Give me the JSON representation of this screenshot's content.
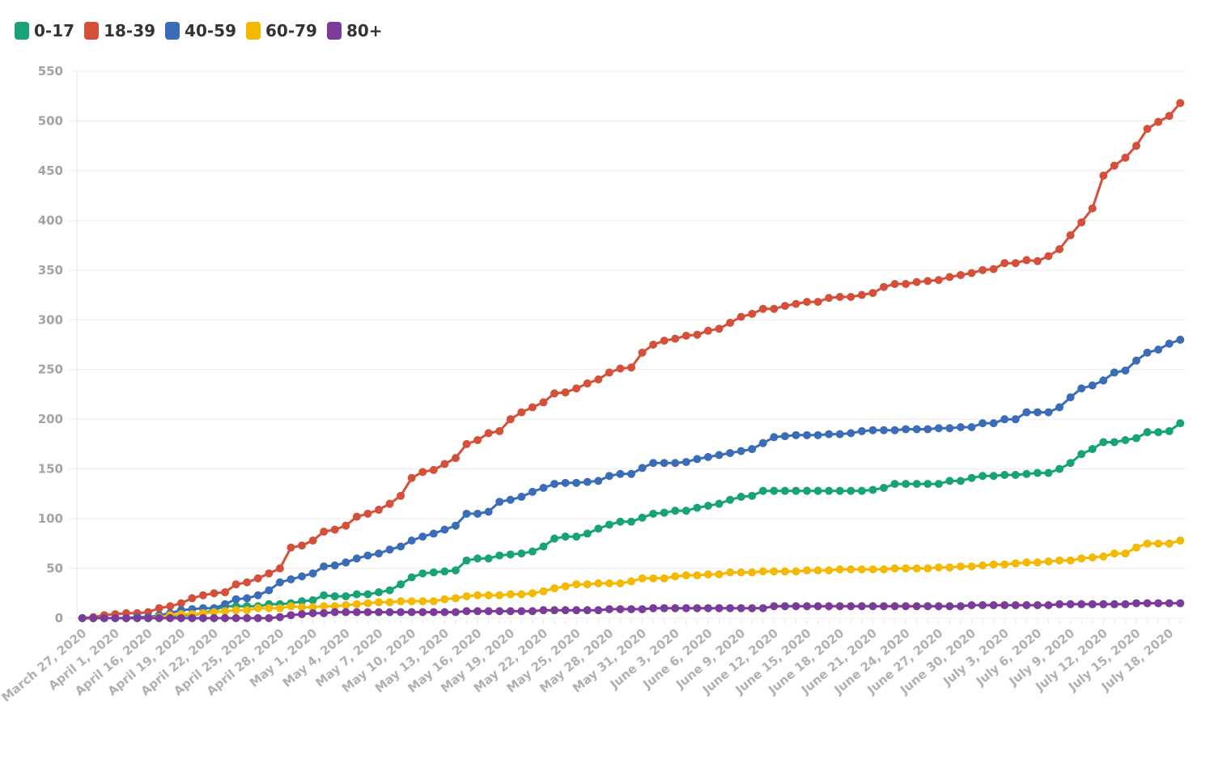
{
  "chart_data": {
    "type": "line",
    "title": "",
    "xlabel": "",
    "ylabel": "",
    "ylim": [
      0,
      550
    ],
    "yticks": [
      0,
      50,
      100,
      150,
      200,
      250,
      300,
      350,
      400,
      450,
      500,
      550
    ],
    "grid": "horizontal",
    "legend_position": "top-left",
    "x": [
      "March 27, 2020",
      "",
      "",
      "April 1, 2020",
      "",
      "",
      "April 16, 2020",
      "April 17, 2020",
      "April 18, 2020",
      "April 19, 2020",
      "April 20, 2020",
      "April 21, 2020",
      "April 22, 2020",
      "April 23, 2020",
      "April 24, 2020",
      "April 25, 2020",
      "April 26, 2020",
      "April 27, 2020",
      "April 28, 2020",
      "April 29, 2020",
      "April 30, 2020",
      "May 1, 2020",
      "May 2, 2020",
      "May 3, 2020",
      "May 4, 2020",
      "May 5, 2020",
      "May 6, 2020",
      "May 7, 2020",
      "May 8, 2020",
      "May 9, 2020",
      "May 10, 2020",
      "May 11, 2020",
      "May 12, 2020",
      "May 13, 2020",
      "May 14, 2020",
      "May 15, 2020",
      "May 16, 2020",
      "May 17, 2020",
      "May 18, 2020",
      "May 19, 2020",
      "May 20, 2020",
      "May 21, 2020",
      "May 22, 2020",
      "May 23, 2020",
      "May 24, 2020",
      "May 25, 2020",
      "May 26, 2020",
      "May 27, 2020",
      "May 28, 2020",
      "May 29, 2020",
      "May 30, 2020",
      "May 31, 2020",
      "June 1, 2020",
      "June 2, 2020",
      "June 3, 2020",
      "June 4, 2020",
      "June 5, 2020",
      "June 6, 2020",
      "June 7, 2020",
      "June 8, 2020",
      "June 9, 2020",
      "June 10, 2020",
      "June 11, 2020",
      "June 12, 2020",
      "June 13, 2020",
      "June 14, 2020",
      "June 15, 2020",
      "June 16, 2020",
      "June 17, 2020",
      "June 18, 2020",
      "June 19, 2020",
      "June 20, 2020",
      "June 21, 2020",
      "June 22, 2020",
      "June 23, 2020",
      "June 24, 2020",
      "June 25, 2020",
      "June 26, 2020",
      "June 27, 2020",
      "June 28, 2020",
      "June 29, 2020",
      "June 30, 2020",
      "July 1, 2020",
      "July 2, 2020",
      "July 3, 2020",
      "July 4, 2020",
      "July 5, 2020",
      "July 6, 2020",
      "July 7, 2020",
      "July 8, 2020",
      "July 9, 2020",
      "July 10, 2020",
      "July 11, 2020",
      "July 12, 2020",
      "July 13, 2020",
      "July 14, 2020",
      "July 15, 2020",
      "July 16, 2020",
      "July 17, 2020",
      "July 18, 2020",
      "July 19, 2020"
    ],
    "tick_labels": [
      "March 27, 2020",
      "April 1, 2020",
      "April 16, 2020",
      "April 19, 2020",
      "April 22, 2020",
      "April 25, 2020",
      "April 28, 2020",
      "May 1, 2020",
      "May 4, 2020",
      "May 7, 2020",
      "May 10, 2020",
      "May 13, 2020",
      "May 16, 2020",
      "May 19, 2020",
      "May 22, 2020",
      "May 25, 2020",
      "May 28, 2020",
      "May 31, 2020",
      "June 3, 2020",
      "June 6, 2020",
      "June 9, 2020",
      "June 12, 2020",
      "June 15, 2020",
      "June 18, 2020",
      "June 21, 2020",
      "June 24, 2020",
      "June 27, 2020",
      "June 30, 2020",
      "July 3, 2020",
      "July 6, 2020",
      "July 9, 2020",
      "July 12, 2020",
      "July 15, 2020",
      "July 18, 2020"
    ],
    "series": [
      {
        "name": "0-17",
        "color": "#17a377",
        "values": [
          0,
          0,
          0,
          0,
          0,
          0,
          0,
          1,
          2,
          3,
          3,
          5,
          8,
          12,
          12,
          12,
          12,
          14,
          14,
          15,
          17,
          18,
          23,
          22,
          22,
          24,
          24,
          26,
          28,
          34,
          41,
          45,
          46,
          47,
          48,
          58,
          60,
          60,
          63,
          64,
          65,
          67,
          72,
          80,
          82,
          82,
          85,
          90,
          94,
          97,
          97,
          101,
          105,
          106,
          108,
          108,
          111,
          113,
          115,
          119,
          122,
          123,
          128,
          128,
          128,
          128,
          128,
          128,
          128,
          128,
          128,
          128,
          129,
          131,
          135,
          135,
          135,
          135,
          135,
          138,
          138,
          141,
          143,
          143,
          144,
          144,
          145,
          146,
          146,
          150,
          156,
          165,
          170,
          177,
          177,
          179,
          181,
          187,
          187,
          188,
          196
        ]
      },
      {
        "name": "18-39",
        "color": "#d4503a",
        "values": [
          0,
          1,
          3,
          4,
          5,
          5,
          6,
          10,
          12,
          15,
          20,
          23,
          25,
          26,
          34,
          36,
          40,
          45,
          50,
          71,
          73,
          78,
          87,
          89,
          93,
          102,
          105,
          109,
          115,
          123,
          141,
          147,
          149,
          155,
          161,
          175,
          179,
          186,
          188,
          200,
          207,
          212,
          217,
          226,
          227,
          231,
          236,
          240,
          247,
          251,
          252,
          267,
          275,
          279,
          281,
          284,
          285,
          289,
          291,
          297,
          303,
          306,
          311,
          311,
          314,
          316,
          318,
          318,
          322,
          323,
          323,
          325,
          327,
          333,
          336,
          336,
          338,
          339,
          340,
          343,
          345,
          347,
          350,
          351,
          357,
          357,
          360,
          359,
          364,
          371,
          385,
          398,
          412,
          445,
          455,
          463,
          475,
          492,
          499,
          505,
          518
        ]
      },
      {
        "name": "40-59",
        "color": "#3b6cb7",
        "values": [
          0,
          0,
          0,
          0,
          0,
          1,
          1,
          3,
          5,
          8,
          9,
          10,
          10,
          14,
          19,
          20,
          23,
          28,
          36,
          39,
          42,
          45,
          52,
          53,
          56,
          60,
          63,
          65,
          69,
          72,
          78,
          82,
          85,
          89,
          93,
          105,
          105,
          107,
          117,
          119,
          122,
          127,
          131,
          135,
          136,
          136,
          137,
          138,
          143,
          145,
          145,
          151,
          156,
          156,
          156,
          157,
          160,
          162,
          164,
          166,
          168,
          170,
          176,
          182,
          183,
          184,
          184,
          184,
          185,
          185,
          186,
          188,
          189,
          189,
          189,
          190,
          190,
          190,
          191,
          191,
          192,
          192,
          196,
          196,
          200,
          200,
          207,
          207,
          207,
          212,
          222,
          231,
          234,
          239,
          247,
          249,
          259,
          267,
          270,
          276,
          280
        ]
      },
      {
        "name": "60-79",
        "color": "#f4b800",
        "values": [
          0,
          0,
          0,
          0,
          0,
          0,
          0,
          1,
          3,
          4,
          4,
          5,
          6,
          7,
          8,
          8,
          10,
          10,
          10,
          12,
          11,
          11,
          12,
          12,
          13,
          14,
          15,
          16,
          16,
          17,
          17,
          17,
          17,
          19,
          20,
          22,
          23,
          23,
          23,
          24,
          24,
          25,
          27,
          30,
          32,
          34,
          34,
          35,
          35,
          35,
          37,
          40,
          40,
          40,
          42,
          43,
          43,
          44,
          44,
          46,
          46,
          46,
          47,
          47,
          47,
          47,
          48,
          48,
          48,
          49,
          49,
          49,
          49,
          49,
          50,
          50,
          50,
          50,
          51,
          51,
          52,
          52,
          53,
          54,
          54,
          55,
          56,
          56,
          57,
          58,
          58,
          60,
          61,
          62,
          65,
          65,
          71,
          75,
          75,
          75,
          78
        ]
      },
      {
        "name": "80+",
        "color": "#7b3b98",
        "values": [
          0,
          0,
          0,
          0,
          0,
          0,
          0,
          0,
          0,
          0,
          0,
          0,
          0,
          0,
          0,
          0,
          0,
          0,
          1,
          3,
          4,
          5,
          5,
          6,
          6,
          6,
          6,
          6,
          6,
          6,
          6,
          6,
          6,
          6,
          6,
          7,
          7,
          7,
          7,
          7,
          7,
          7,
          8,
          8,
          8,
          8,
          8,
          8,
          9,
          9,
          9,
          9,
          10,
          10,
          10,
          10,
          10,
          10,
          10,
          10,
          10,
          10,
          10,
          12,
          12,
          12,
          12,
          12,
          12,
          12,
          12,
          12,
          12,
          12,
          12,
          12,
          12,
          12,
          12,
          12,
          12,
          13,
          13,
          13,
          13,
          13,
          13,
          13,
          13,
          14,
          14,
          14,
          14,
          14,
          14,
          14,
          15,
          15,
          15,
          15,
          15
        ]
      }
    ]
  }
}
